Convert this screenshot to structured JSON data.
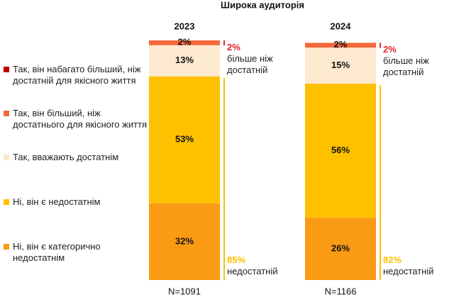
{
  "chart_data": {
    "type": "stacked_bar",
    "title": "Широка аудиторія",
    "categories": [
      "2023",
      "2024"
    ],
    "ylim": [
      0,
      100
    ],
    "series": [
      {
        "name": "Ні, він є категорично недостатнім",
        "color": "#fb9a14",
        "values": [
          32,
          26
        ],
        "value_labels": [
          "32%",
          "26%"
        ]
      },
      {
        "name": "Ні, він є недостатнім",
        "color": "#ffc000",
        "values": [
          53,
          56
        ],
        "value_labels": [
          "53%",
          "56%"
        ]
      },
      {
        "name": "Так, вважають достатнім",
        "color": "#fde9d0",
        "values": [
          13,
          15
        ],
        "value_labels": [
          "13%",
          "15%"
        ]
      },
      {
        "name": "Так, він більший, ніж достатнього для якісного життя",
        "color": "#f4683a",
        "values": [
          2,
          2
        ],
        "value_labels": [
          "2%",
          "2%"
        ]
      },
      {
        "name": "Так, він набагато більший, ніж достатній для якісного життя",
        "color": "#c00000",
        "values": [
          0,
          0
        ]
      }
    ],
    "annotations": [
      {
        "top_label": "2%",
        "top_text": "більше ніж достатній",
        "bottom_label": "85%",
        "bottom_text": "недостатній"
      },
      {
        "top_label": "2%",
        "top_text": "більше ніж достатній",
        "bottom_label": "82%",
        "bottom_text": "недостатній"
      }
    ],
    "top_color": "#e8202a",
    "bottom_color": "#ffc000",
    "sample_labels": [
      "N=1091",
      "N=1166"
    ]
  }
}
